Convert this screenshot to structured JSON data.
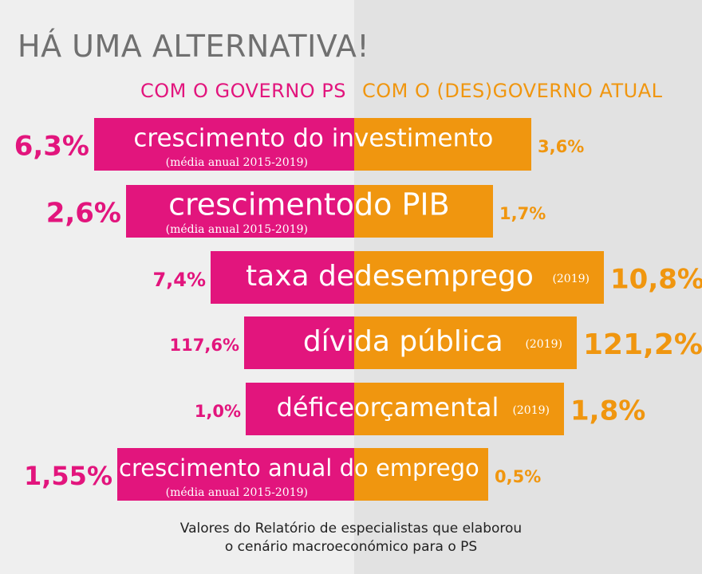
{
  "title": "HÁ UMA ALTERNATIVA!",
  "column_headers": {
    "left": "COM O GOVERNO PS",
    "right": "COM O (DES)GOVERNO ATUAL"
  },
  "colors": {
    "left": "#e2157d",
    "right": "#f0960f",
    "bg_left": "#efefef",
    "bg_right": "#e2e2e2",
    "title": "#707070"
  },
  "chart_data": {
    "type": "bar",
    "orientation": "diverging-horizontal",
    "title": "HÁ UMA ALTERNATIVA!",
    "series": [
      {
        "name": "COM O GOVERNO PS",
        "side": "left",
        "color": "#e2157d"
      },
      {
        "name": "COM O (DES)GOVERNO ATUAL",
        "side": "right",
        "color": "#f0960f"
      }
    ],
    "rows": [
      {
        "label_left": "crescimento do in",
        "label_right": "vestimento",
        "note": "(média anual 2015-2019)",
        "note_side": "left",
        "left_text": "6,3%",
        "left_value": 6.3,
        "right_text": "3,6%",
        "right_value": 3.6
      },
      {
        "label_left": "crescimento",
        "label_right": "do PIB",
        "note": "(média anual 2015-2019)",
        "note_side": "left",
        "left_text": "2,6%",
        "left_value": 2.6,
        "right_text": "1,7%",
        "right_value": 1.7
      },
      {
        "label_left": "taxa de",
        "label_right": "desemprego",
        "note": "(2019)",
        "note_side": "right",
        "left_text": "7,4%",
        "left_value": 7.4,
        "right_text": "10,8%",
        "right_value": 10.8
      },
      {
        "label_left": "dívi",
        "label_right": "da pública",
        "note": "(2019)",
        "note_side": "right",
        "left_text": "117,6%",
        "left_value": 117.6,
        "right_text": "121,2%",
        "right_value": 121.2
      },
      {
        "label_left": "défice",
        "label_right": "orçamental",
        "note": "(2019)",
        "note_side": "right",
        "left_text": "1,0%",
        "left_value": 1.0,
        "right_text": "1,8%",
        "right_value": 1.8
      },
      {
        "label_left": "crescimento anual d",
        "label_right": "o emprego",
        "note": "(média anual 2015-2019)",
        "note_side": "left",
        "left_text": "1,55%",
        "left_value": 1.55,
        "right_text": "0,5%",
        "right_value": 0.5
      }
    ]
  },
  "footer": {
    "line1": "Valores do Relatório de especialistas que elaborou",
    "line2": "o cenário macroeconómico para o PS"
  }
}
